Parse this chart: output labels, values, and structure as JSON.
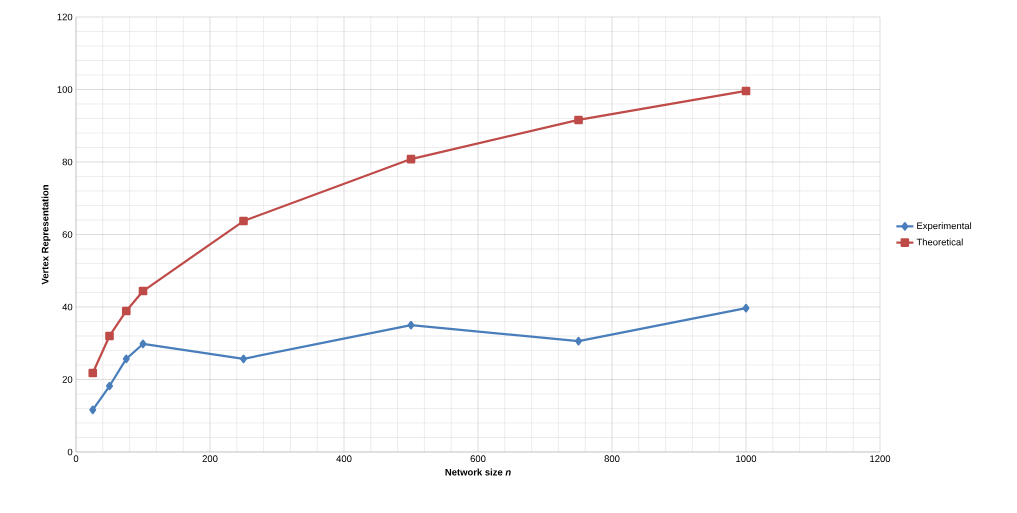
{
  "chart_data": {
    "type": "line",
    "xlabel": "Network size *n*",
    "ylabel": "Vertex Representation",
    "x": [
      25,
      50,
      75,
      100,
      250,
      500,
      750,
      1000
    ],
    "series": [
      {
        "name": "Experimental",
        "color": "#4a7ebb",
        "marker": "diamond",
        "values": [
          11.6,
          18.2,
          25.7,
          29.8,
          25.7,
          35.0,
          30.6,
          39.7
        ]
      },
      {
        "name": "Theoretical",
        "color": "#be4b48",
        "marker": "square",
        "values": [
          21.8,
          32.0,
          38.9,
          44.4,
          63.7,
          80.8,
          91.6,
          99.6
        ]
      }
    ],
    "xlim": [
      0,
      1200
    ],
    "xticks": [
      0,
      200,
      400,
      600,
      800,
      1000,
      1200
    ],
    "ylim": [
      0,
      120
    ],
    "yticks": [
      0,
      20,
      40,
      60,
      80,
      100,
      120
    ],
    "grid": true,
    "legend": "right",
    "line_style": "solid"
  }
}
